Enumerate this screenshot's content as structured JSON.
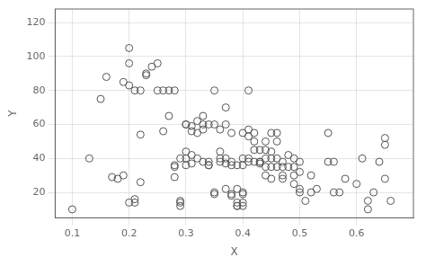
{
  "chart_data": {
    "type": "scatter",
    "xlabel": "X",
    "ylabel": "Y",
    "xlim": [
      0.07,
      0.7
    ],
    "ylim": [
      5,
      128
    ],
    "xticks": [
      0.1,
      0.2,
      0.3,
      0.4,
      0.5,
      0.6
    ],
    "yticks": [
      20,
      40,
      60,
      80,
      100,
      120
    ],
    "grid": true,
    "color": "#555555",
    "marker": "circle",
    "x": [
      0.1,
      0.13,
      0.15,
      0.16,
      0.17,
      0.18,
      0.19,
      0.19,
      0.2,
      0.2,
      0.2,
      0.2,
      0.21,
      0.21,
      0.21,
      0.22,
      0.22,
      0.22,
      0.23,
      0.23,
      0.24,
      0.25,
      0.25,
      0.26,
      0.26,
      0.27,
      0.27,
      0.28,
      0.28,
      0.28,
      0.28,
      0.29,
      0.29,
      0.29,
      0.29,
      0.3,
      0.3,
      0.3,
      0.3,
      0.3,
      0.31,
      0.31,
      0.31,
      0.31,
      0.32,
      0.32,
      0.32,
      0.33,
      0.33,
      0.33,
      0.33,
      0.34,
      0.34,
      0.34,
      0.34,
      0.35,
      0.35,
      0.35,
      0.35,
      0.36,
      0.36,
      0.36,
      0.36,
      0.37,
      0.37,
      0.37,
      0.37,
      0.37,
      0.38,
      0.38,
      0.38,
      0.38,
      0.38,
      0.39,
      0.39,
      0.39,
      0.39,
      0.39,
      0.4,
      0.4,
      0.4,
      0.4,
      0.4,
      0.4,
      0.4,
      0.41,
      0.41,
      0.41,
      0.41,
      0.41,
      0.42,
      0.42,
      0.42,
      0.42,
      0.43,
      0.43,
      0.43,
      0.43,
      0.44,
      0.44,
      0.44,
      0.44,
      0.44,
      0.45,
      0.45,
      0.45,
      0.45,
      0.45,
      0.46,
      0.46,
      0.46,
      0.46,
      0.47,
      0.47,
      0.47,
      0.47,
      0.48,
      0.48,
      0.49,
      0.49,
      0.49,
      0.49,
      0.5,
      0.5,
      0.5,
      0.5,
      0.51,
      0.52,
      0.52,
      0.53,
      0.55,
      0.55,
      0.56,
      0.56,
      0.57,
      0.58,
      0.6,
      0.61,
      0.62,
      0.62,
      0.63,
      0.64,
      0.65,
      0.65,
      0.65,
      0.66
    ],
    "values": [
      10,
      40,
      75,
      88,
      29,
      28,
      30,
      85,
      105,
      83,
      96,
      14,
      14,
      16,
      80,
      80,
      54,
      26,
      89,
      90,
      94,
      96,
      80,
      80,
      56,
      65,
      80,
      35,
      29,
      36,
      80,
      12,
      14,
      15,
      40,
      36,
      40,
      44,
      60,
      60,
      37,
      42,
      56,
      59,
      40,
      55,
      62,
      38,
      57,
      60,
      65,
      36,
      36,
      38,
      60,
      19,
      20,
      60,
      80,
      57,
      38,
      40,
      44,
      22,
      37,
      40,
      60,
      70,
      18,
      19,
      38,
      36,
      55,
      12,
      12,
      14,
      22,
      36,
      12,
      14,
      19,
      20,
      36,
      40,
      55,
      40,
      38,
      53,
      57,
      80,
      45,
      50,
      55,
      38,
      37,
      38,
      38,
      45,
      30,
      35,
      40,
      45,
      50,
      28,
      35,
      40,
      44,
      55,
      35,
      40,
      50,
      55,
      28,
      30,
      35,
      38,
      35,
      42,
      25,
      30,
      35,
      40,
      20,
      22,
      32,
      38,
      15,
      30,
      20,
      22,
      38,
      55,
      20,
      38,
      20,
      28,
      25,
      40,
      10,
      15,
      20,
      38,
      48,
      52,
      28,
      15
    ]
  }
}
